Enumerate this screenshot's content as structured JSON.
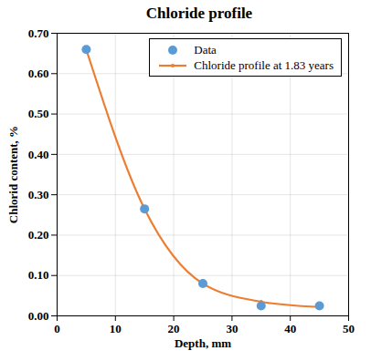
{
  "chart_data": {
    "type": "scatter",
    "title": "Chloride profile",
    "x_label": "Depth, mm",
    "y_label": "Chlorid content, %",
    "x": [
      5,
      15,
      25,
      35,
      45
    ],
    "series": [
      {
        "name": "Data",
        "type": "scatter",
        "color": "#5b9bd5",
        "marker": "circle",
        "values": [
          0.66,
          0.265,
          0.08,
          0.025,
          0.025
        ]
      },
      {
        "name": "Chloride profile at 1.83 years",
        "type": "line",
        "color": "#ed7d31",
        "marker": "circle",
        "line_style": "solid",
        "values": [
          0.66,
          0.265,
          0.08,
          0.035,
          0.022
        ]
      }
    ],
    "xlim": [
      0,
      50
    ],
    "ylim": [
      0,
      0.7
    ],
    "xticks": [
      0,
      10,
      20,
      30,
      40,
      50
    ],
    "yticks": [
      {
        "value": 0,
        "label": "0.00"
      },
      {
        "value": 0.1,
        "label": "0.10"
      },
      {
        "value": 0.2,
        "label": "0.20"
      },
      {
        "value": 0.3,
        "label": "0.30"
      },
      {
        "value": 0.4,
        "label": "0.40"
      },
      {
        "value": 0.5,
        "label": "0.50"
      },
      {
        "value": 0.6,
        "label": "0.60"
      },
      {
        "value": 0.7,
        "label": "0.70"
      }
    ],
    "grid": true,
    "legend": "top-right"
  }
}
